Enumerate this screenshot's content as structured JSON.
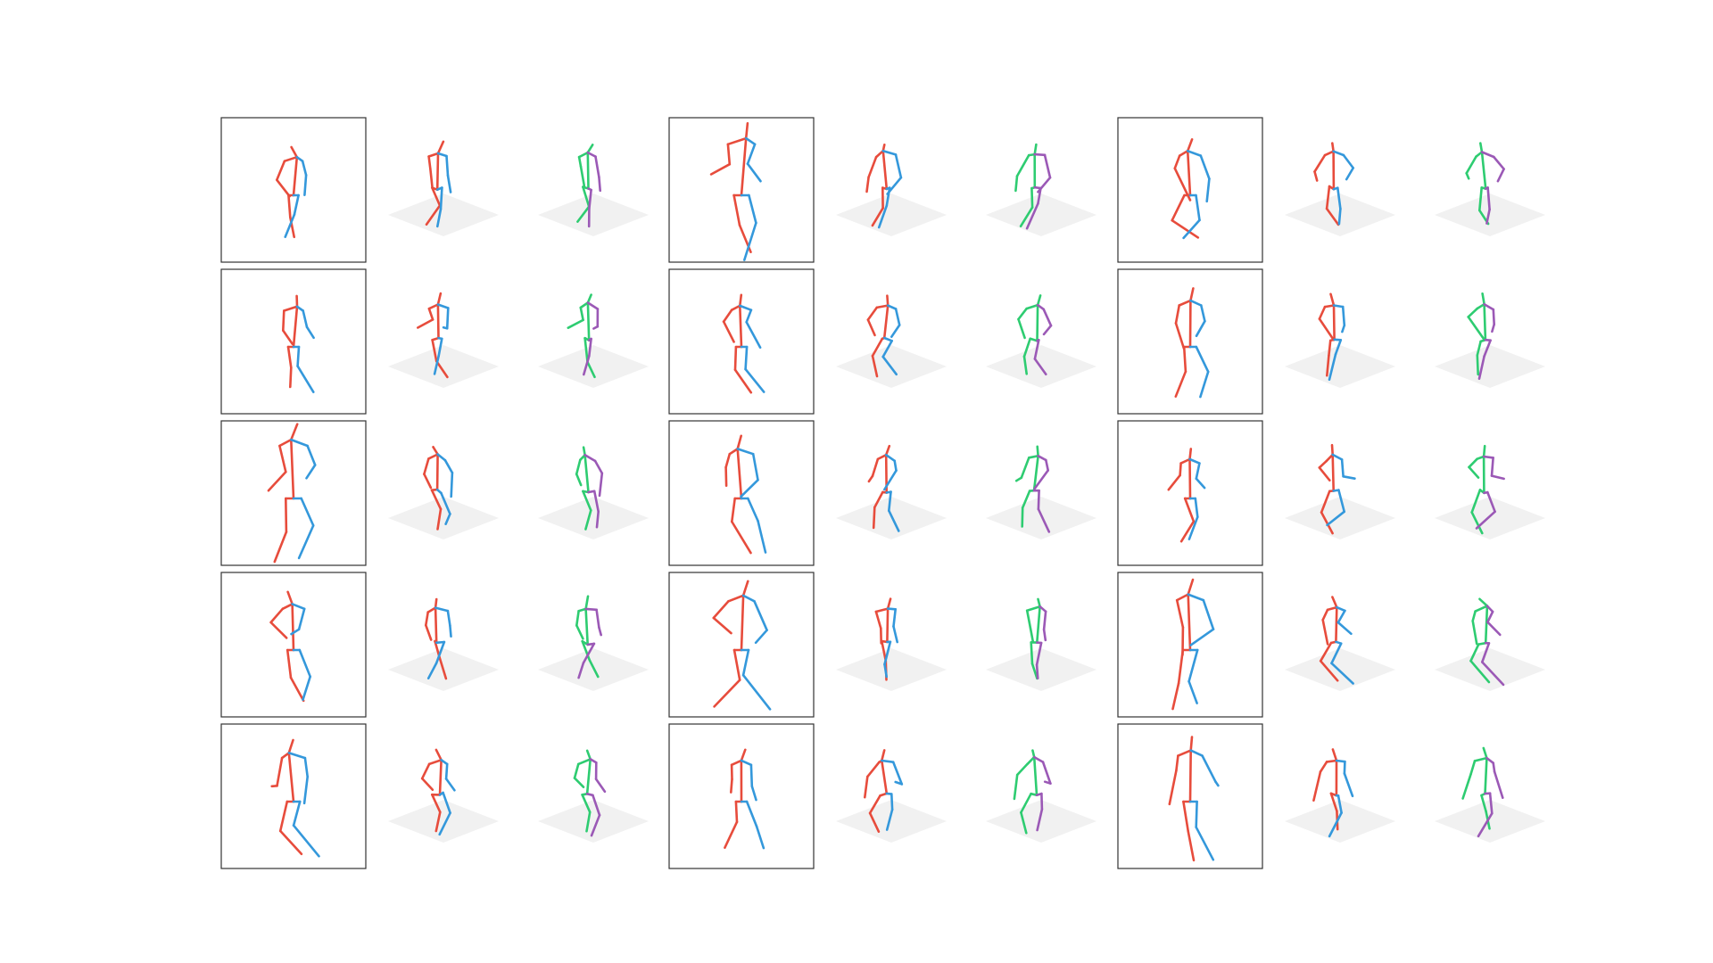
{
  "figure": {
    "rows": 5,
    "groups": 3,
    "cells_per_group": [
      "2d-input",
      "3d-prediction",
      "3d-ground-truth"
    ]
  },
  "colors": {
    "background": "#ffffff",
    "frame": "#333333",
    "ground_plane": "#f1f1f1",
    "prediction_right": "#e74c3c",
    "prediction_left": "#3498db",
    "truth_right": "#2ecc71",
    "truth_left": "#9b59b6"
  },
  "icons": {
    "pose_2d": "stick-figure-2d-icon",
    "pose_3d_prediction": "stick-figure-3d-prediction-icon",
    "pose_3d_truth": "stick-figure-3d-truth-icon",
    "floor": "ground-plane-icon"
  }
}
